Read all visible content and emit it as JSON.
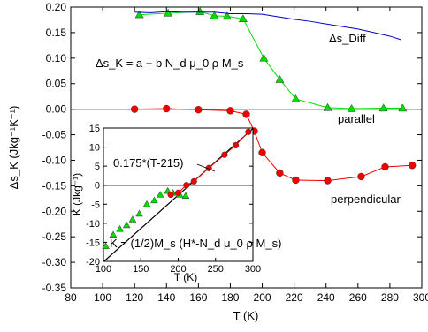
{
  "chart_data": [
    {
      "type": "line",
      "xlabel": "T (K)",
      "ylabel": "Δs_K (Jkg⁻¹K⁻¹)",
      "xlim": [
        80,
        300
      ],
      "ylim": [
        -0.35,
        0.2
      ],
      "xticks": [
        "80",
        "100",
        "120",
        "140",
        "160",
        "180",
        "200",
        "220",
        "240",
        "260",
        "280",
        "300"
      ],
      "yticks": [
        "0.20",
        "0.15",
        "0.10",
        "0.05",
        "0.00",
        "-0.05",
        "-0.10",
        "-0.15",
        "-0.20",
        "-0.25",
        "-0.30",
        "-0.35"
      ],
      "grid": false,
      "zero_line": true,
      "annotations": {
        "equation": "Δs_K = a + b N_d μ_0 ρ M_s",
        "diff_label": "Δs_Diff",
        "parallel_label": "parallel",
        "perpendicular_label": "perpendicular"
      },
      "series": [
        {
          "name": "parallel",
          "color": "#00dd00",
          "marker": "triangle",
          "x": [
            123,
            141,
            161,
            170,
            178,
            188,
            201,
            211,
            221,
            241,
            256,
            276,
            288
          ],
          "y": [
            0.185,
            0.188,
            0.191,
            0.183,
            0.182,
            0.177,
            0.1,
            0.058,
            0.02,
            0.003,
            0.001,
            0.002,
            0.002
          ]
        },
        {
          "name": "perpendicular",
          "color": "#ee0000",
          "marker": "circle",
          "x": [
            120,
            140,
            160,
            180,
            190,
            195,
            200,
            211,
            221,
            241,
            262,
            277,
            294
          ],
          "y": [
            0.0,
            0.001,
            -0.001,
            -0.003,
            -0.01,
            -0.043,
            -0.085,
            -0.125,
            -0.139,
            -0.14,
            -0.132,
            -0.113,
            -0.11
          ]
        },
        {
          "name": "Δs_Diff",
          "color": "#0000cc",
          "marker": "none",
          "x": [
            120,
            130,
            140,
            150,
            160,
            170,
            180,
            190,
            200,
            210,
            220,
            230,
            240,
            250,
            260,
            270,
            280,
            287
          ],
          "y": [
            0.19,
            0.189,
            0.191,
            0.19,
            0.19,
            0.19,
            0.187,
            0.187,
            0.186,
            0.181,
            0.176,
            0.172,
            0.167,
            0.162,
            0.157,
            0.15,
            0.143,
            0.136
          ]
        }
      ]
    },
    {
      "type": "scatter",
      "xlabel": "T (K)",
      "ylabel": "K (Jkg⁻¹)",
      "xlim": [
        100,
        300
      ],
      "ylim": [
        -20,
        15
      ],
      "xticks": [
        "100",
        "150",
        "200",
        "250",
        "300"
      ],
      "yticks": [
        "15",
        "10",
        "5",
        "0",
        "-5",
        "-10",
        "-15",
        "-20"
      ],
      "grid": false,
      "zero_line": true,
      "annotations": {
        "fit_label": "0.175*(T-215)",
        "formula": "K = (1/2)M_s (H*-N_d μ_0 ρ M_s)"
      },
      "fit_line": {
        "slope": 0.175,
        "x0": 215,
        "color": "#000000"
      },
      "series": [
        {
          "name": "parallel",
          "color": "#00dd00",
          "marker": "triangle",
          "x": [
            103,
            113,
            122,
            131,
            139,
            148,
            158,
            168,
            176,
            186,
            193,
            202,
            210
          ],
          "y": [
            -16.0,
            -13.0,
            -11.5,
            -10.5,
            -9.0,
            -7.5,
            -5.0,
            -4.0,
            -2.5,
            -1.5,
            -2.0,
            -2.5,
            -2.8
          ]
        },
        {
          "name": "perpendicular",
          "color": "#ee0000",
          "marker": "circle",
          "x": [
            190,
            200,
            211,
            221,
            241,
            262,
            277,
            294
          ],
          "y": [
            -2.5,
            -2.0,
            0.0,
            1.0,
            4.5,
            8.0,
            10.5,
            14.0
          ]
        }
      ]
    }
  ]
}
